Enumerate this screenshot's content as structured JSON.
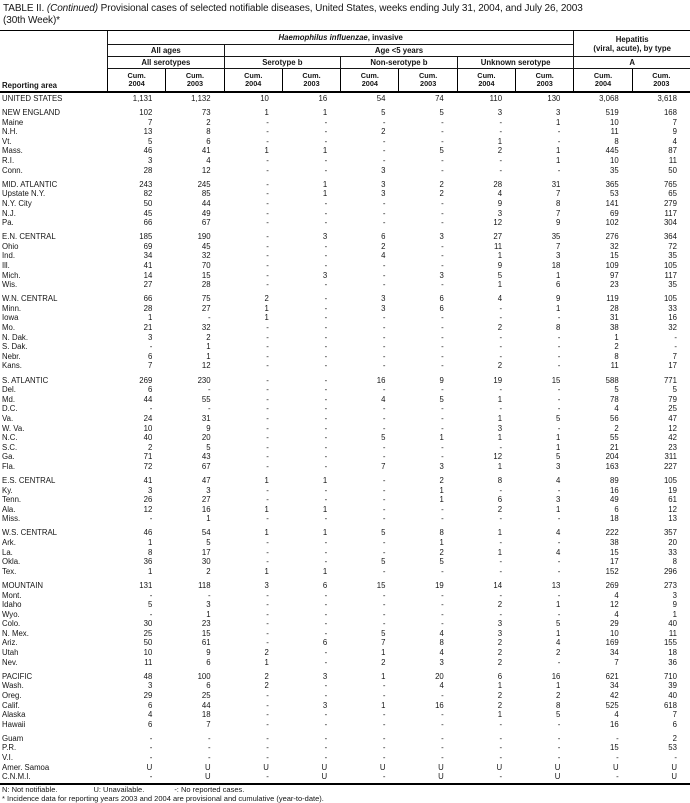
{
  "title": {
    "part1": "TABLE II.",
    "continued": "(Continued)",
    "part2": " Provisional cases of selected notifiable diseases, United States, weeks ending July 31, 2004, and July 26, 2003",
    "line2": "(30th Week)*"
  },
  "table": {
    "reporting_area_label": "Reporting area",
    "haem_italic": "Haemophilus influenzae",
    "haem_rest": ", invasive",
    "hepatitis_line1": "Hepatitis",
    "hepatitis_line2": "(viral, acute), by type",
    "hepatitis_sub": "A",
    "all_ages": "All ages",
    "all_serotypes": "All serotypes",
    "age_lt5": "Age <5 years",
    "serotype_b": "Serotype b",
    "non_serotype_b": "Non-serotype b",
    "unknown_serotype": "Unknown serotype",
    "cum_label": "Cum.",
    "years": [
      "2004",
      "2003"
    ]
  },
  "rows": [
    {
      "area": "UNITED STATES",
      "gap": false,
      "v": [
        "1,131",
        "1,132",
        "10",
        "16",
        "54",
        "74",
        "110",
        "130",
        "3,068",
        "3,618"
      ]
    },
    {
      "area": "NEW ENGLAND",
      "gap": true,
      "v": [
        "102",
        "73",
        "1",
        "1",
        "5",
        "5",
        "3",
        "3",
        "519",
        "168"
      ]
    },
    {
      "area": "Maine",
      "gap": false,
      "v": [
        "7",
        "2",
        "-",
        "-",
        "-",
        "-",
        "-",
        "1",
        "10",
        "7"
      ]
    },
    {
      "area": "N.H.",
      "gap": false,
      "v": [
        "13",
        "8",
        "-",
        "-",
        "2",
        "-",
        "-",
        "-",
        "11",
        "9"
      ]
    },
    {
      "area": "Vt.",
      "gap": false,
      "v": [
        "5",
        "6",
        "-",
        "-",
        "-",
        "-",
        "1",
        "-",
        "8",
        "4"
      ]
    },
    {
      "area": "Mass.",
      "gap": false,
      "v": [
        "46",
        "41",
        "1",
        "1",
        "-",
        "5",
        "2",
        "1",
        "445",
        "87"
      ]
    },
    {
      "area": "R.I.",
      "gap": false,
      "v": [
        "3",
        "4",
        "-",
        "-",
        "-",
        "-",
        "-",
        "1",
        "10",
        "11"
      ]
    },
    {
      "area": "Conn.",
      "gap": false,
      "v": [
        "28",
        "12",
        "-",
        "-",
        "3",
        "-",
        "-",
        "-",
        "35",
        "50"
      ]
    },
    {
      "area": "MID. ATLANTIC",
      "gap": true,
      "v": [
        "243",
        "245",
        "-",
        "1",
        "3",
        "2",
        "28",
        "31",
        "365",
        "765"
      ]
    },
    {
      "area": "Upstate N.Y.",
      "gap": false,
      "v": [
        "82",
        "85",
        "-",
        "1",
        "3",
        "2",
        "4",
        "7",
        "53",
        "65"
      ]
    },
    {
      "area": "N.Y. City",
      "gap": false,
      "v": [
        "50",
        "44",
        "-",
        "-",
        "-",
        "-",
        "9",
        "8",
        "141",
        "279"
      ]
    },
    {
      "area": "N.J.",
      "gap": false,
      "v": [
        "45",
        "49",
        "-",
        "-",
        "-",
        "-",
        "3",
        "7",
        "69",
        "117"
      ]
    },
    {
      "area": "Pa.",
      "gap": false,
      "v": [
        "66",
        "67",
        "-",
        "-",
        "-",
        "-",
        "12",
        "9",
        "102",
        "304"
      ]
    },
    {
      "area": "E.N. CENTRAL",
      "gap": true,
      "v": [
        "185",
        "190",
        "-",
        "3",
        "6",
        "3",
        "27",
        "35",
        "276",
        "364"
      ]
    },
    {
      "area": "Ohio",
      "gap": false,
      "v": [
        "69",
        "45",
        "-",
        "-",
        "2",
        "-",
        "11",
        "7",
        "32",
        "72"
      ]
    },
    {
      "area": "Ind.",
      "gap": false,
      "v": [
        "34",
        "32",
        "-",
        "-",
        "4",
        "-",
        "1",
        "3",
        "15",
        "35"
      ]
    },
    {
      "area": "Ill.",
      "gap": false,
      "v": [
        "41",
        "70",
        "-",
        "-",
        "-",
        "-",
        "9",
        "18",
        "109",
        "105"
      ]
    },
    {
      "area": "Mich.",
      "gap": false,
      "v": [
        "14",
        "15",
        "-",
        "3",
        "-",
        "3",
        "5",
        "1",
        "97",
        "117"
      ]
    },
    {
      "area": "Wis.",
      "gap": false,
      "v": [
        "27",
        "28",
        "-",
        "-",
        "-",
        "-",
        "1",
        "6",
        "23",
        "35"
      ]
    },
    {
      "area": "W.N. CENTRAL",
      "gap": true,
      "v": [
        "66",
        "75",
        "2",
        "-",
        "3",
        "6",
        "4",
        "9",
        "119",
        "105"
      ]
    },
    {
      "area": "Minn.",
      "gap": false,
      "v": [
        "28",
        "27",
        "1",
        "-",
        "3",
        "6",
        "-",
        "1",
        "28",
        "33"
      ]
    },
    {
      "area": "Iowa",
      "gap": false,
      "v": [
        "1",
        "-",
        "1",
        "-",
        "-",
        "-",
        "-",
        "-",
        "31",
        "16"
      ]
    },
    {
      "area": "Mo.",
      "gap": false,
      "v": [
        "21",
        "32",
        "-",
        "-",
        "-",
        "-",
        "2",
        "8",
        "38",
        "32"
      ]
    },
    {
      "area": "N. Dak.",
      "gap": false,
      "v": [
        "3",
        "2",
        "-",
        "-",
        "-",
        "-",
        "-",
        "-",
        "1",
        "-"
      ]
    },
    {
      "area": "S. Dak.",
      "gap": false,
      "v": [
        "-",
        "1",
        "-",
        "-",
        "-",
        "-",
        "-",
        "-",
        "2",
        "-"
      ]
    },
    {
      "area": "Nebr.",
      "gap": false,
      "v": [
        "6",
        "1",
        "-",
        "-",
        "-",
        "-",
        "-",
        "-",
        "8",
        "7"
      ]
    },
    {
      "area": "Kans.",
      "gap": false,
      "v": [
        "7",
        "12",
        "-",
        "-",
        "-",
        "-",
        "2",
        "-",
        "11",
        "17"
      ]
    },
    {
      "area": "S. ATLANTIC",
      "gap": true,
      "v": [
        "269",
        "230",
        "-",
        "-",
        "16",
        "9",
        "19",
        "15",
        "588",
        "771"
      ]
    },
    {
      "area": "Del.",
      "gap": false,
      "v": [
        "6",
        "-",
        "-",
        "-",
        "-",
        "-",
        "-",
        "-",
        "5",
        "5"
      ]
    },
    {
      "area": "Md.",
      "gap": false,
      "v": [
        "44",
        "55",
        "-",
        "-",
        "4",
        "5",
        "1",
        "-",
        "78",
        "79"
      ]
    },
    {
      "area": "D.C.",
      "gap": false,
      "v": [
        "-",
        "-",
        "-",
        "-",
        "-",
        "-",
        "-",
        "-",
        "4",
        "25"
      ]
    },
    {
      "area": "Va.",
      "gap": false,
      "v": [
        "24",
        "31",
        "-",
        "-",
        "-",
        "-",
        "1",
        "5",
        "56",
        "47"
      ]
    },
    {
      "area": "W. Va.",
      "gap": false,
      "v": [
        "10",
        "9",
        "-",
        "-",
        "-",
        "-",
        "3",
        "-",
        "2",
        "12"
      ]
    },
    {
      "area": "N.C.",
      "gap": false,
      "v": [
        "40",
        "20",
        "-",
        "-",
        "5",
        "1",
        "1",
        "1",
        "55",
        "42"
      ]
    },
    {
      "area": "S.C.",
      "gap": false,
      "v": [
        "2",
        "5",
        "-",
        "-",
        "-",
        "-",
        "-",
        "1",
        "21",
        "23"
      ]
    },
    {
      "area": "Ga.",
      "gap": false,
      "v": [
        "71",
        "43",
        "-",
        "-",
        "-",
        "-",
        "12",
        "5",
        "204",
        "311"
      ]
    },
    {
      "area": "Fla.",
      "gap": false,
      "v": [
        "72",
        "67",
        "-",
        "-",
        "7",
        "3",
        "1",
        "3",
        "163",
        "227"
      ]
    },
    {
      "area": "E.S. CENTRAL",
      "gap": true,
      "v": [
        "41",
        "47",
        "1",
        "1",
        "-",
        "2",
        "8",
        "4",
        "89",
        "105"
      ]
    },
    {
      "area": "Ky.",
      "gap": false,
      "v": [
        "3",
        "3",
        "-",
        "-",
        "-",
        "1",
        "-",
        "-",
        "16",
        "19"
      ]
    },
    {
      "area": "Tenn.",
      "gap": false,
      "v": [
        "26",
        "27",
        "-",
        "-",
        "-",
        "1",
        "6",
        "3",
        "49",
        "61"
      ]
    },
    {
      "area": "Ala.",
      "gap": false,
      "v": [
        "12",
        "16",
        "1",
        "1",
        "-",
        "-",
        "2",
        "1",
        "6",
        "12"
      ]
    },
    {
      "area": "Miss.",
      "gap": false,
      "v": [
        "-",
        "1",
        "-",
        "-",
        "-",
        "-",
        "-",
        "-",
        "18",
        "13"
      ]
    },
    {
      "area": "W.S. CENTRAL",
      "gap": true,
      "v": [
        "46",
        "54",
        "1",
        "1",
        "5",
        "8",
        "1",
        "4",
        "222",
        "357"
      ]
    },
    {
      "area": "Ark.",
      "gap": false,
      "v": [
        "1",
        "5",
        "-",
        "-",
        "-",
        "1",
        "-",
        "-",
        "38",
        "20"
      ]
    },
    {
      "area": "La.",
      "gap": false,
      "v": [
        "8",
        "17",
        "-",
        "-",
        "-",
        "2",
        "1",
        "4",
        "15",
        "33"
      ]
    },
    {
      "area": "Okla.",
      "gap": false,
      "v": [
        "36",
        "30",
        "-",
        "-",
        "5",
        "5",
        "-",
        "-",
        "17",
        "8"
      ]
    },
    {
      "area": "Tex.",
      "gap": false,
      "v": [
        "1",
        "2",
        "1",
        "1",
        "-",
        "-",
        "-",
        "-",
        "152",
        "296"
      ]
    },
    {
      "area": "MOUNTAIN",
      "gap": true,
      "v": [
        "131",
        "118",
        "3",
        "6",
        "15",
        "19",
        "14",
        "13",
        "269",
        "273"
      ]
    },
    {
      "area": "Mont.",
      "gap": false,
      "v": [
        "-",
        "-",
        "-",
        "-",
        "-",
        "-",
        "-",
        "-",
        "4",
        "3"
      ]
    },
    {
      "area": "Idaho",
      "gap": false,
      "v": [
        "5",
        "3",
        "-",
        "-",
        "-",
        "-",
        "2",
        "1",
        "12",
        "9"
      ]
    },
    {
      "area": "Wyo.",
      "gap": false,
      "v": [
        "-",
        "1",
        "-",
        "-",
        "-",
        "-",
        "-",
        "-",
        "4",
        "1"
      ]
    },
    {
      "area": "Colo.",
      "gap": false,
      "v": [
        "30",
        "23",
        "-",
        "-",
        "-",
        "-",
        "3",
        "5",
        "29",
        "40"
      ]
    },
    {
      "area": "N. Mex.",
      "gap": false,
      "v": [
        "25",
        "15",
        "-",
        "-",
        "5",
        "4",
        "3",
        "1",
        "10",
        "11"
      ]
    },
    {
      "area": "Ariz.",
      "gap": false,
      "v": [
        "50",
        "61",
        "-",
        "6",
        "7",
        "8",
        "2",
        "4",
        "169",
        "155"
      ]
    },
    {
      "area": "Utah",
      "gap": false,
      "v": [
        "10",
        "9",
        "2",
        "-",
        "1",
        "4",
        "2",
        "2",
        "34",
        "18"
      ]
    },
    {
      "area": "Nev.",
      "gap": false,
      "v": [
        "11",
        "6",
        "1",
        "-",
        "2",
        "3",
        "2",
        "-",
        "7",
        "36"
      ]
    },
    {
      "area": "PACIFIC",
      "gap": true,
      "v": [
        "48",
        "100",
        "2",
        "3",
        "1",
        "20",
        "6",
        "16",
        "621",
        "710"
      ]
    },
    {
      "area": "Wash.",
      "gap": false,
      "v": [
        "3",
        "6",
        "2",
        "-",
        "-",
        "4",
        "1",
        "1",
        "34",
        "39"
      ]
    },
    {
      "area": "Oreg.",
      "gap": false,
      "v": [
        "29",
        "25",
        "-",
        "-",
        "-",
        "-",
        "2",
        "2",
        "42",
        "40"
      ]
    },
    {
      "area": "Calif.",
      "gap": false,
      "v": [
        "6",
        "44",
        "-",
        "3",
        "1",
        "16",
        "2",
        "8",
        "525",
        "618"
      ]
    },
    {
      "area": "Alaska",
      "gap": false,
      "v": [
        "4",
        "18",
        "-",
        "-",
        "-",
        "-",
        "1",
        "5",
        "4",
        "7"
      ]
    },
    {
      "area": "Hawaii",
      "gap": false,
      "v": [
        "6",
        "7",
        "-",
        "-",
        "-",
        "-",
        "-",
        "-",
        "16",
        "6"
      ]
    },
    {
      "area": "Guam",
      "gap": true,
      "v": [
        "-",
        "-",
        "-",
        "-",
        "-",
        "-",
        "-",
        "-",
        "-",
        "2"
      ]
    },
    {
      "area": "P.R.",
      "gap": false,
      "v": [
        "-",
        "-",
        "-",
        "-",
        "-",
        "-",
        "-",
        "-",
        "15",
        "53"
      ]
    },
    {
      "area": "V.I.",
      "gap": false,
      "v": [
        "-",
        "-",
        "-",
        "-",
        "-",
        "-",
        "-",
        "-",
        "-",
        "-"
      ]
    },
    {
      "area": "Amer. Samoa",
      "gap": false,
      "v": [
        "U",
        "U",
        "U",
        "U",
        "U",
        "U",
        "U",
        "U",
        "U",
        "U"
      ]
    },
    {
      "area": "C.N.M.I.",
      "gap": false,
      "v": [
        "-",
        "U",
        "-",
        "U",
        "-",
        "U",
        "-",
        "U",
        "-",
        "U"
      ]
    }
  ],
  "footnotes": {
    "legend": [
      "N: Not notifiable.",
      "U: Unavailable.",
      "-: No reported cases."
    ],
    "note": "* Incidence data for reporting years 2003 and 2004 are provisional and cumulative (year-to-date)."
  }
}
